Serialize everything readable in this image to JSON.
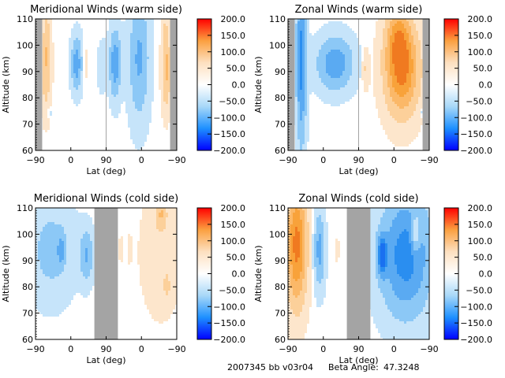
{
  "footer": {
    "id_text": "2007345 bb v03r04",
    "beta_label": "Beta Angle:",
    "beta_value": "47.3248"
  },
  "colormap": {
    "stops": [
      "#0000ff",
      "#1e90ff",
      "#a8d8f8",
      "#ffffff",
      "#fde0c0",
      "#fba040",
      "#ff0000"
    ],
    "fill_levels": [
      {
        "min": -200,
        "max": -150,
        "color": "#1a3cff"
      },
      {
        "min": -150,
        "max": -100,
        "color": "#1a70f0"
      },
      {
        "min": -100,
        "max": -75,
        "color": "#2a8ef0"
      },
      {
        "min": -75,
        "max": -50,
        "color": "#5aaaf2"
      },
      {
        "min": -50,
        "max": -25,
        "color": "#8cc8f6"
      },
      {
        "min": -25,
        "max": -5,
        "color": "#c6e4fa"
      },
      {
        "min": -5,
        "max": 5,
        "color": "#ffffff"
      },
      {
        "min": 5,
        "max": 25,
        "color": "#fde6cc"
      },
      {
        "min": 25,
        "max": 50,
        "color": "#fcd09a"
      },
      {
        "min": 50,
        "max": 75,
        "color": "#fbb868"
      },
      {
        "min": 75,
        "max": 100,
        "color": "#f8a23a"
      },
      {
        "min": 100,
        "max": 150,
        "color": "#f07a20"
      },
      {
        "min": 150,
        "max": 200,
        "color": "#e82a10"
      }
    ],
    "nodata_color": "#a4a4a4"
  },
  "chart_data": [
    {
      "type": "heatmap",
      "id": "merid-warm",
      "title": "Meridional Winds (warm side)",
      "xlabel": "Lat (deg)",
      "ylabel": "Altitude (km)",
      "xticks": [
        "-90",
        "0",
        "90",
        "0",
        "-90"
      ],
      "yticks": [
        "60",
        "70",
        "80",
        "90",
        "100",
        "110"
      ],
      "ylim": [
        60,
        110
      ],
      "xlim": [
        0,
        360
      ],
      "colorbar_ticks": [
        "200.0",
        "150.0",
        "100.0",
        "50.0",
        "0.0",
        "-50.0",
        "-100.0",
        "-150.0",
        "-200.0"
      ],
      "colorbar_range": [
        -200,
        200
      ],
      "nodata_bands": [
        [
          0,
          17
        ],
        [
          179,
          181
        ],
        [
          343,
          360
        ]
      ],
      "features": [
        {
          "x": 27,
          "y": 92,
          "sx": 9,
          "sy": 12,
          "v": 45
        },
        {
          "x": 30,
          "y": 103,
          "sx": 6,
          "sy": 8,
          "v": 15
        },
        {
          "x": 36,
          "y": 74.5,
          "sx": 4,
          "sy": 1.2,
          "v": -20
        },
        {
          "x": 105,
          "y": 93,
          "sx": 10,
          "sy": 7,
          "v": -65
        },
        {
          "x": 128,
          "y": 93,
          "sx": 5,
          "sy": 4,
          "v": 18
        },
        {
          "x": 170,
          "y": 92,
          "sx": 8,
          "sy": 6,
          "v": -25
        },
        {
          "x": 203,
          "y": 93,
          "sx": 10,
          "sy": 9,
          "v": -70
        },
        {
          "x": 264,
          "y": 95,
          "sx": 18,
          "sy": 16,
          "v": -55
        },
        {
          "x": 333,
          "y": 90,
          "sx": 8,
          "sy": 10,
          "v": 55
        },
        {
          "x": 330,
          "y": 104,
          "sx": 6,
          "sy": 6,
          "v": 20
        }
      ]
    },
    {
      "type": "heatmap",
      "id": "zonal-warm",
      "title": "Zonal Winds (warm side)",
      "xlabel": "Lat (deg)",
      "ylabel": "Altitude (km)",
      "xticks": [
        "-90",
        "0",
        "90",
        "0",
        "-90"
      ],
      "yticks": [
        "60",
        "70",
        "80",
        "90",
        "100",
        "110"
      ],
      "ylim": [
        60,
        110
      ],
      "xlim": [
        0,
        360
      ],
      "colorbar_ticks": [
        "200.0",
        "150.0",
        "100.0",
        "50.0",
        "0.0",
        "-50.0",
        "-100.0",
        "-150.0",
        "-200.0"
      ],
      "colorbar_range": [
        -200,
        200
      ],
      "nodata_bands": [
        [
          0,
          17
        ],
        [
          179,
          181
        ],
        [
          343,
          360
        ]
      ],
      "features": [
        {
          "x": 34,
          "y": 94,
          "sx": 9,
          "sy": 22,
          "v": -85
        },
        {
          "x": 120,
          "y": 93,
          "sx": 32,
          "sy": 7,
          "v": -70
        },
        {
          "x": 198,
          "y": 91,
          "sx": 6,
          "sy": 5,
          "v": 30
        },
        {
          "x": 290,
          "y": 91,
          "sx": 30,
          "sy": 12,
          "v": 110
        },
        {
          "x": 280,
          "y": 104,
          "sx": 20,
          "sy": 8,
          "v": 50
        },
        {
          "x": 340,
          "y": 74.5,
          "sx": 2,
          "sy": 1.2,
          "v": -20
        }
      ]
    },
    {
      "type": "heatmap",
      "id": "merid-cold",
      "title": "Meridional Winds (cold side)",
      "xlabel": "Lat (deg)",
      "ylabel": "Altitude (km)",
      "xticks": [
        "-90",
        "0",
        "90",
        "0",
        "-90"
      ],
      "yticks": [
        "60",
        "70",
        "80",
        "90",
        "100",
        "110"
      ],
      "ylim": [
        60,
        110
      ],
      "xlim": [
        0,
        360
      ],
      "colorbar_ticks": [
        "200.0",
        "150.0",
        "100.0",
        "50.0",
        "0.0",
        "-50.0",
        "-100.0",
        "-150.0",
        "-200.0"
      ],
      "colorbar_range": [
        -200,
        200
      ],
      "nodata_bands": [
        [
          150,
          210
        ]
      ],
      "features": [
        {
          "x": 40,
          "y": 94,
          "sx": 40,
          "sy": 13,
          "v": -35
        },
        {
          "x": 65,
          "y": 94,
          "sx": 6,
          "sy": 4,
          "v": -45
        },
        {
          "x": 130,
          "y": 92,
          "sx": 12,
          "sy": 7,
          "v": -50
        },
        {
          "x": 218,
          "y": 94,
          "sx": 4,
          "sy": 3,
          "v": 20
        },
        {
          "x": 240,
          "y": 94,
          "sx": 4,
          "sy": 4,
          "v": 12
        },
        {
          "x": 320,
          "y": 93,
          "sx": 35,
          "sy": 16,
          "v": 20
        },
        {
          "x": 320,
          "y": 108,
          "sx": 10,
          "sy": 4,
          "v": 40
        },
        {
          "x": 335,
          "y": 80,
          "sx": 5,
          "sy": 3,
          "v": 30
        }
      ]
    },
    {
      "type": "heatmap",
      "id": "zonal-cold",
      "title": "Zonal Winds (cold side)",
      "xlabel": "Lat (deg)",
      "ylabel": "Altitude (km)",
      "xticks": [
        "-90",
        "0",
        "90",
        "0",
        "-90"
      ],
      "yticks": [
        "60",
        "70",
        "80",
        "90",
        "100",
        "110"
      ],
      "ylim": [
        60,
        110
      ],
      "xlim": [
        0,
        360
      ],
      "colorbar_ticks": [
        "200.0",
        "150.0",
        "100.0",
        "50.0",
        "0.0",
        "-50.0",
        "-100.0",
        "-150.0",
        "-200.0"
      ],
      "colorbar_range": [
        -200,
        200
      ],
      "nodata_bands": [
        [
          150,
          210
        ]
      ],
      "features": [
        {
          "x": 22,
          "y": 96,
          "sx": 18,
          "sy": 16,
          "v": 110
        },
        {
          "x": 80,
          "y": 94,
          "sx": 10,
          "sy": 10,
          "v": -60
        },
        {
          "x": 126,
          "y": 94,
          "sx": 3,
          "sy": 3,
          "v": 20
        },
        {
          "x": 240,
          "y": 92,
          "sx": 8,
          "sy": 5,
          "v": -100
        },
        {
          "x": 300,
          "y": 92,
          "sx": 45,
          "sy": 16,
          "v": -90
        },
        {
          "x": 325,
          "y": 100,
          "sx": 8,
          "sy": 5,
          "v": 60
        }
      ]
    }
  ]
}
